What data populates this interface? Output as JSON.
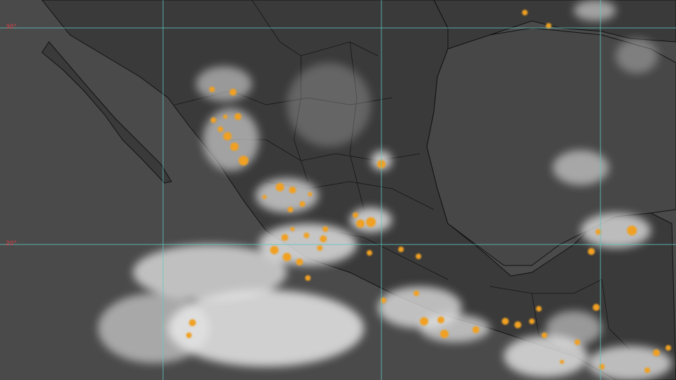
{
  "map": {
    "type": "infrared satellite image",
    "region": "Mexico",
    "latitude_labels": [
      "30°",
      "20°"
    ],
    "colors": {
      "background_land": "#3c3c3c",
      "background_sea": "#4a4a4a",
      "clouds": "#f2f2f2",
      "storm_cells": "#f0a020",
      "grid": "#5fc8c0",
      "borders": "#111111",
      "labels": "#e0404a"
    }
  }
}
